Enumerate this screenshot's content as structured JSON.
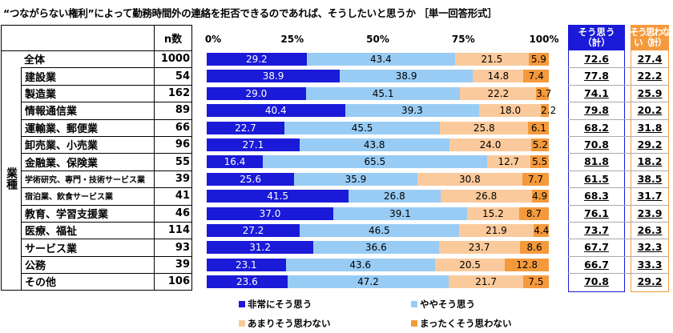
{
  "title": "“つながらない権利”によって勤務時間外の連絡を拒否できるのであれば、そうしたいと思うか ［単一回答形式］",
  "n_header": "n数",
  "group_label": "業種",
  "totals_headers": {
    "agree": "そう思う（計）",
    "disagree": "そう思わない（計）"
  },
  "colors": {
    "strongly_agree": "#1a1ad8",
    "somewhat_agree": "#99ccf4",
    "somewhat_disagree": "#fbca9c",
    "strongly_disagree": "#f59a3c",
    "agree_box": "#1a1ad8",
    "disagree_box": "#f59a3c"
  },
  "chart_data": {
    "type": "bar",
    "stacked": true,
    "orientation": "horizontal",
    "title": "“つながらない権利”によって勤務時間外の連絡を拒否できるのであれば、そうしたいと思うか ［単一回答形式］",
    "xlim": [
      0,
      100
    ],
    "tick_labels": [
      "0%",
      "25%",
      "50%",
      "75%",
      "100%"
    ],
    "legend_position": "bottom",
    "series_names": [
      "非常にそう思う",
      "ややそう思う",
      "あまりそう思わない",
      "まったくそう思わない"
    ],
    "rows": [
      {
        "label": "全体",
        "n": "1000",
        "values": [
          29.2,
          43.4,
          21.5,
          5.9
        ],
        "agree": "72.6",
        "disagree": "27.4"
      },
      {
        "label": "建設業",
        "n": "54",
        "values": [
          38.9,
          38.9,
          14.8,
          7.4
        ],
        "agree": "77.8",
        "disagree": "22.2"
      },
      {
        "label": "製造業",
        "n": "162",
        "values": [
          29.0,
          45.1,
          22.2,
          3.7
        ],
        "agree": "74.1",
        "disagree": "25.9"
      },
      {
        "label": "情報通信業",
        "n": "89",
        "values": [
          40.4,
          39.3,
          18.0,
          2.2
        ],
        "agree": "79.8",
        "disagree": "20.2"
      },
      {
        "label": "運輸業、郵便業",
        "n": "66",
        "values": [
          22.7,
          45.5,
          25.8,
          6.1
        ],
        "agree": "68.2",
        "disagree": "31.8"
      },
      {
        "label": "卸売業、小売業",
        "n": "96",
        "values": [
          27.1,
          43.8,
          24.0,
          5.2
        ],
        "agree": "70.8",
        "disagree": "29.2"
      },
      {
        "label": "金融業、保険業",
        "n": "55",
        "values": [
          16.4,
          65.5,
          12.7,
          5.5
        ],
        "agree": "81.8",
        "disagree": "18.2"
      },
      {
        "label": "学術研究、専門・技術サービス業",
        "n": "39",
        "values": [
          25.6,
          35.9,
          30.8,
          7.7
        ],
        "agree": "61.5",
        "disagree": "38.5"
      },
      {
        "label": "宿泊業、飲食サービス業",
        "n": "41",
        "values": [
          41.5,
          26.8,
          26.8,
          4.9
        ],
        "agree": "68.3",
        "disagree": "31.7"
      },
      {
        "label": "教育、学習支援業",
        "n": "46",
        "values": [
          37.0,
          39.1,
          15.2,
          8.7
        ],
        "agree": "76.1",
        "disagree": "23.9"
      },
      {
        "label": "医療、福祉",
        "n": "114",
        "values": [
          27.2,
          46.5,
          21.9,
          4.4
        ],
        "agree": "73.7",
        "disagree": "26.3"
      },
      {
        "label": "サービス業",
        "n": "93",
        "values": [
          31.2,
          36.6,
          23.7,
          8.6
        ],
        "agree": "67.7",
        "disagree": "32.3"
      },
      {
        "label": "公務",
        "n": "39",
        "values": [
          23.1,
          43.6,
          20.5,
          12.8
        ],
        "agree": "66.7",
        "disagree": "33.3"
      },
      {
        "label": "その他",
        "n": "106",
        "values": [
          23.6,
          47.2,
          21.7,
          7.5
        ],
        "agree": "70.8",
        "disagree": "29.2"
      }
    ]
  }
}
